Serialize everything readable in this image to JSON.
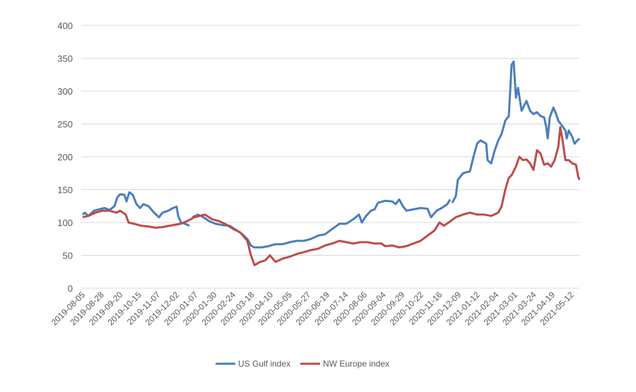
{
  "chart_data": {
    "type": "line",
    "title": "",
    "xlabel": "",
    "ylabel": "",
    "ylim": [
      0,
      400
    ],
    "yticks": [
      0,
      50,
      100,
      150,
      200,
      250,
      300,
      350,
      400
    ],
    "grid": true,
    "legend_position": "bottom",
    "x_note": "point x values are positions measured in category-tick units (0 = first tick label)",
    "categories": [
      "2019-08-05",
      "2019-08-28",
      "2019-09-20",
      "2019-10-15",
      "2019-11-07",
      "2019-12-02",
      "2020-01-07",
      "2020-01-30",
      "2020-02-24",
      "2020-03-18",
      "2020-04-10",
      "2020-05-05",
      "2020-05-27",
      "2020-06-19",
      "2020-07-14",
      "2020-08-06",
      "2020-09-04",
      "2020-09-29",
      "2020-10-22",
      "2020-11-16",
      "2020-12-09",
      "2021-01-12",
      "2021-02-04",
      "2021-03-01",
      "2021-03-24",
      "2021-04-19",
      "2021-05-12"
    ],
    "series": [
      {
        "name": "US Gulf index",
        "color": "#4a7ebb",
        "points": [
          [
            0,
            112
          ],
          [
            0.11,
            115
          ],
          [
            0.3,
            110
          ],
          [
            0.6,
            118
          ],
          [
            0.86,
            120
          ],
          [
            1.17,
            122
          ],
          [
            1.43,
            119
          ],
          [
            1.69,
            125
          ],
          [
            1.84,
            138
          ],
          [
            1.99,
            143
          ],
          [
            2.22,
            142
          ],
          [
            2.33,
            132
          ],
          [
            2.48,
            146
          ],
          [
            2.67,
            142
          ],
          [
            2.86,
            128
          ],
          [
            3.05,
            122
          ],
          [
            3.23,
            128
          ],
          [
            3.5,
            125
          ],
          [
            3.8,
            115
          ],
          [
            4.06,
            108
          ],
          [
            4.25,
            115
          ],
          [
            4.55,
            118
          ],
          [
            4.81,
            122
          ],
          [
            5.0,
            124
          ],
          [
            5.08,
            110
          ],
          [
            5.23,
            100
          ],
          [
            5.45,
            98
          ],
          [
            5.68,
            95
          ],
          null,
          [
            5.83,
            108
          ],
          [
            6.13,
            112
          ],
          [
            6.43,
            108
          ],
          [
            6.73,
            102
          ],
          [
            7.07,
            98
          ],
          [
            7.44,
            96
          ],
          [
            7.82,
            95
          ],
          [
            8.2,
            88
          ],
          [
            8.5,
            82
          ],
          [
            8.76,
            75
          ],
          [
            8.95,
            65
          ],
          [
            9.14,
            62
          ],
          [
            9.51,
            62
          ],
          [
            9.89,
            64
          ],
          [
            10.26,
            67
          ],
          [
            10.64,
            67
          ],
          [
            11.02,
            70
          ],
          [
            11.39,
            72
          ],
          [
            11.77,
            72
          ],
          [
            12.14,
            75
          ],
          [
            12.52,
            80
          ],
          [
            12.89,
            82
          ],
          [
            13.27,
            90
          ],
          [
            13.65,
            98
          ],
          [
            14.02,
            98
          ],
          [
            14.4,
            105
          ],
          [
            14.7,
            112
          ],
          [
            14.85,
            100
          ],
          [
            15.08,
            110
          ],
          [
            15.34,
            118
          ],
          [
            15.53,
            120
          ],
          [
            15.71,
            130
          ],
          [
            16.09,
            133
          ],
          [
            16.47,
            132
          ],
          [
            16.65,
            128
          ],
          [
            16.84,
            135
          ],
          [
            17.03,
            125
          ],
          [
            17.22,
            118
          ],
          [
            17.59,
            120
          ],
          [
            17.97,
            122
          ],
          [
            18.35,
            121
          ],
          [
            18.53,
            108
          ],
          [
            18.83,
            118
          ],
          [
            19.1,
            122
          ],
          [
            19.4,
            128
          ],
          [
            19.55,
            135
          ],
          null,
          [
            19.66,
            130
          ],
          [
            19.85,
            140
          ],
          [
            19.96,
            165
          ],
          [
            20.23,
            175
          ],
          [
            20.6,
            178
          ],
          [
            20.79,
            200
          ],
          [
            20.98,
            220
          ],
          [
            21.17,
            225
          ],
          [
            21.47,
            220
          ],
          [
            21.54,
            195
          ],
          [
            21.73,
            190
          ],
          [
            21.92,
            210
          ],
          [
            22.11,
            225
          ],
          [
            22.29,
            235
          ],
          [
            22.48,
            255
          ],
          [
            22.67,
            262
          ],
          [
            22.82,
            340
          ],
          [
            22.93,
            345
          ],
          [
            23.05,
            290
          ],
          [
            23.16,
            305
          ],
          [
            23.35,
            270
          ],
          [
            23.61,
            285
          ],
          [
            23.8,
            270
          ],
          [
            23.98,
            265
          ],
          [
            24.17,
            268
          ],
          [
            24.36,
            262
          ],
          [
            24.55,
            260
          ],
          [
            24.66,
            245
          ],
          [
            24.74,
            228
          ],
          [
            24.85,
            260
          ],
          [
            25.04,
            275
          ],
          [
            25.19,
            265
          ],
          [
            25.3,
            255
          ],
          [
            25.49,
            248
          ],
          [
            25.68,
            240
          ],
          [
            25.75,
            228
          ],
          [
            25.86,
            240
          ],
          [
            26.05,
            230
          ],
          [
            26.17,
            220
          ],
          [
            26.32,
            225
          ],
          [
            26.43,
            228
          ]
        ]
      },
      {
        "name": "NW Europe index",
        "color": "#be4b48",
        "points": [
          [
            0,
            108
          ],
          [
            0.3,
            110
          ],
          [
            0.68,
            115
          ],
          [
            1.05,
            118
          ],
          [
            1.43,
            118
          ],
          [
            1.8,
            115
          ],
          [
            1.99,
            118
          ],
          [
            2.29,
            112
          ],
          [
            2.44,
            100
          ],
          [
            2.74,
            98
          ],
          [
            3.12,
            95
          ],
          [
            3.5,
            94
          ],
          [
            3.87,
            92
          ],
          [
            4.25,
            93
          ],
          [
            4.62,
            95
          ],
          [
            5.19,
            98
          ],
          [
            5.56,
            102
          ],
          [
            5.94,
            108
          ],
          [
            6.5,
            112
          ],
          [
            6.88,
            105
          ],
          [
            7.26,
            102
          ],
          [
            7.63,
            97
          ],
          [
            8.01,
            90
          ],
          [
            8.38,
            85
          ],
          [
            8.76,
            72
          ],
          [
            8.95,
            50
          ],
          [
            9.14,
            35
          ],
          [
            9.44,
            40
          ],
          [
            9.7,
            42
          ],
          [
            9.96,
            50
          ],
          [
            10.26,
            40
          ],
          [
            10.64,
            45
          ],
          [
            11.02,
            48
          ],
          [
            11.39,
            52
          ],
          [
            11.77,
            55
          ],
          [
            12.14,
            58
          ],
          [
            12.52,
            60
          ],
          [
            12.89,
            65
          ],
          [
            13.27,
            68
          ],
          [
            13.65,
            72
          ],
          [
            14.02,
            70
          ],
          [
            14.4,
            68
          ],
          [
            14.77,
            70
          ],
          [
            15.15,
            70
          ],
          [
            15.53,
            68
          ],
          [
            15.9,
            68
          ],
          [
            16.09,
            64
          ],
          [
            16.47,
            65
          ],
          [
            16.84,
            62
          ],
          [
            17.22,
            64
          ],
          [
            17.59,
            68
          ],
          [
            17.97,
            72
          ],
          [
            18.35,
            80
          ],
          [
            18.72,
            88
          ],
          [
            18.98,
            100
          ],
          [
            19.21,
            95
          ],
          [
            19.47,
            100
          ],
          [
            19.85,
            108
          ],
          [
            20.23,
            112
          ],
          [
            20.6,
            115
          ],
          [
            20.98,
            112
          ],
          [
            21.35,
            112
          ],
          [
            21.73,
            110
          ],
          [
            22.11,
            115
          ],
          [
            22.29,
            125
          ],
          [
            22.48,
            150
          ],
          [
            22.67,
            168
          ],
          [
            22.82,
            172
          ],
          [
            23.05,
            185
          ],
          [
            23.23,
            200
          ],
          [
            23.42,
            195
          ],
          [
            23.61,
            196
          ],
          [
            23.8,
            190
          ],
          [
            23.98,
            180
          ],
          [
            24.17,
            210
          ],
          [
            24.36,
            205
          ],
          [
            24.55,
            188
          ],
          [
            24.74,
            190
          ],
          [
            24.92,
            185
          ],
          [
            25.11,
            195
          ],
          [
            25.3,
            215
          ],
          [
            25.41,
            245
          ],
          [
            25.53,
            225
          ],
          [
            25.68,
            195
          ],
          [
            25.86,
            195
          ],
          [
            26.05,
            190
          ],
          [
            26.24,
            188
          ],
          [
            26.36,
            170
          ],
          [
            26.43,
            165
          ]
        ]
      }
    ]
  }
}
